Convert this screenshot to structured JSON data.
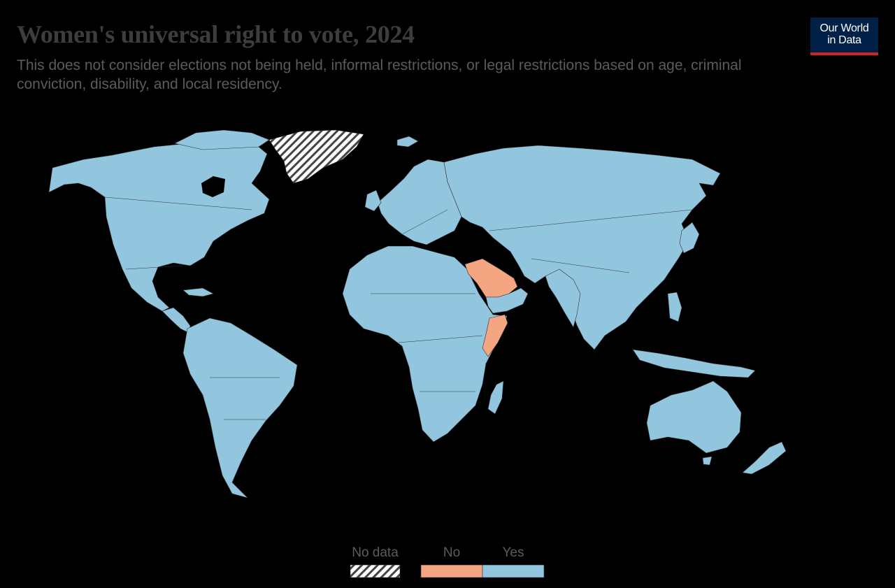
{
  "header": {
    "title": "Women's universal right to vote, 2024",
    "subtitle": "This does not consider elections not being held, informal restrictions, or legal restrictions based on age, criminal conviction, disability, and local residency."
  },
  "logo": {
    "line1": "Our World",
    "line2": "in Data"
  },
  "colors": {
    "background": "#000000",
    "yes": "#92c5de",
    "no": "#f4a582",
    "no_data_hatch": "#444444",
    "border": "#333333",
    "logo_bg": "#002147",
    "logo_accent": "#ce261e"
  },
  "legend": [
    {
      "label": "No data",
      "key": "no_data"
    },
    {
      "label": "No",
      "key": "no"
    },
    {
      "label": "Yes",
      "key": "yes"
    }
  ],
  "map_data": {
    "year": 2024,
    "regions": [
      {
        "name": "Greenland",
        "category": "no_data"
      },
      {
        "name": "Saudi Arabia",
        "category": "no"
      },
      {
        "name": "Somalia",
        "category": "no"
      },
      {
        "name": "North America",
        "category": "yes"
      },
      {
        "name": "South America",
        "category": "yes"
      },
      {
        "name": "Europe",
        "category": "yes"
      },
      {
        "name": "Russia",
        "category": "yes"
      },
      {
        "name": "Africa",
        "category": "yes"
      },
      {
        "name": "Asia",
        "category": "yes"
      },
      {
        "name": "Australia",
        "category": "yes"
      },
      {
        "name": "New Zealand",
        "category": "yes"
      },
      {
        "name": "Madagascar",
        "category": "yes"
      }
    ]
  }
}
